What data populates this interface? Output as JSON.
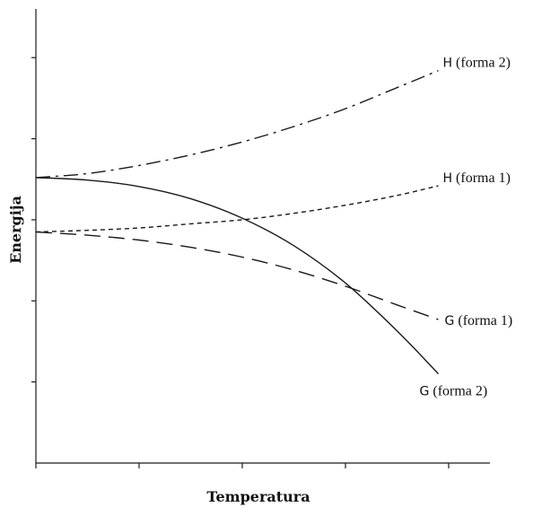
{
  "chart_data": {
    "type": "line",
    "xlabel": "Temperatura",
    "ylabel": "Energija",
    "xlim": [
      0,
      4.4
    ],
    "ylim": [
      0,
      5.6
    ],
    "x_ticks": [
      0,
      1,
      2,
      3,
      4
    ],
    "y_ticks": [
      1,
      2,
      3,
      4,
      5
    ],
    "grid": false,
    "series": [
      {
        "name": "H (forma 2)",
        "letter": "H",
        "suffix": "(forma 2)",
        "style": "dash-dot",
        "x": [
          0,
          0.5,
          1.0,
          1.5,
          2.0,
          2.5,
          3.0,
          3.5,
          3.9
        ],
        "y": [
          3.52,
          3.57,
          3.67,
          3.8,
          3.96,
          4.15,
          4.37,
          4.63,
          4.84
        ]
      },
      {
        "name": "H (forma 1)",
        "letter": "H",
        "suffix": "(forma 1)",
        "style": "dotted",
        "x": [
          0,
          0.5,
          1.0,
          1.5,
          2.0,
          2.5,
          3.0,
          3.5,
          3.9
        ],
        "y": [
          2.85,
          2.87,
          2.9,
          2.95,
          3.0,
          3.08,
          3.18,
          3.3,
          3.42
        ]
      },
      {
        "name": "G (forma 1)",
        "letter": "G",
        "suffix": "(forma 1)",
        "style": "long-dash",
        "x": [
          0,
          0.5,
          1.0,
          1.5,
          2.0,
          2.5,
          3.0,
          3.5,
          3.9
        ],
        "y": [
          2.85,
          2.81,
          2.75,
          2.66,
          2.54,
          2.38,
          2.18,
          1.95,
          1.77
        ]
      },
      {
        "name": "G (forma 2)",
        "letter": "G",
        "suffix": "(forma 2)",
        "style": "solid",
        "x": [
          0,
          0.5,
          1.0,
          1.5,
          2.0,
          2.5,
          3.0,
          3.5,
          3.9
        ],
        "y": [
          3.52,
          3.49,
          3.41,
          3.26,
          3.02,
          2.68,
          2.22,
          1.63,
          1.1
        ]
      }
    ]
  }
}
